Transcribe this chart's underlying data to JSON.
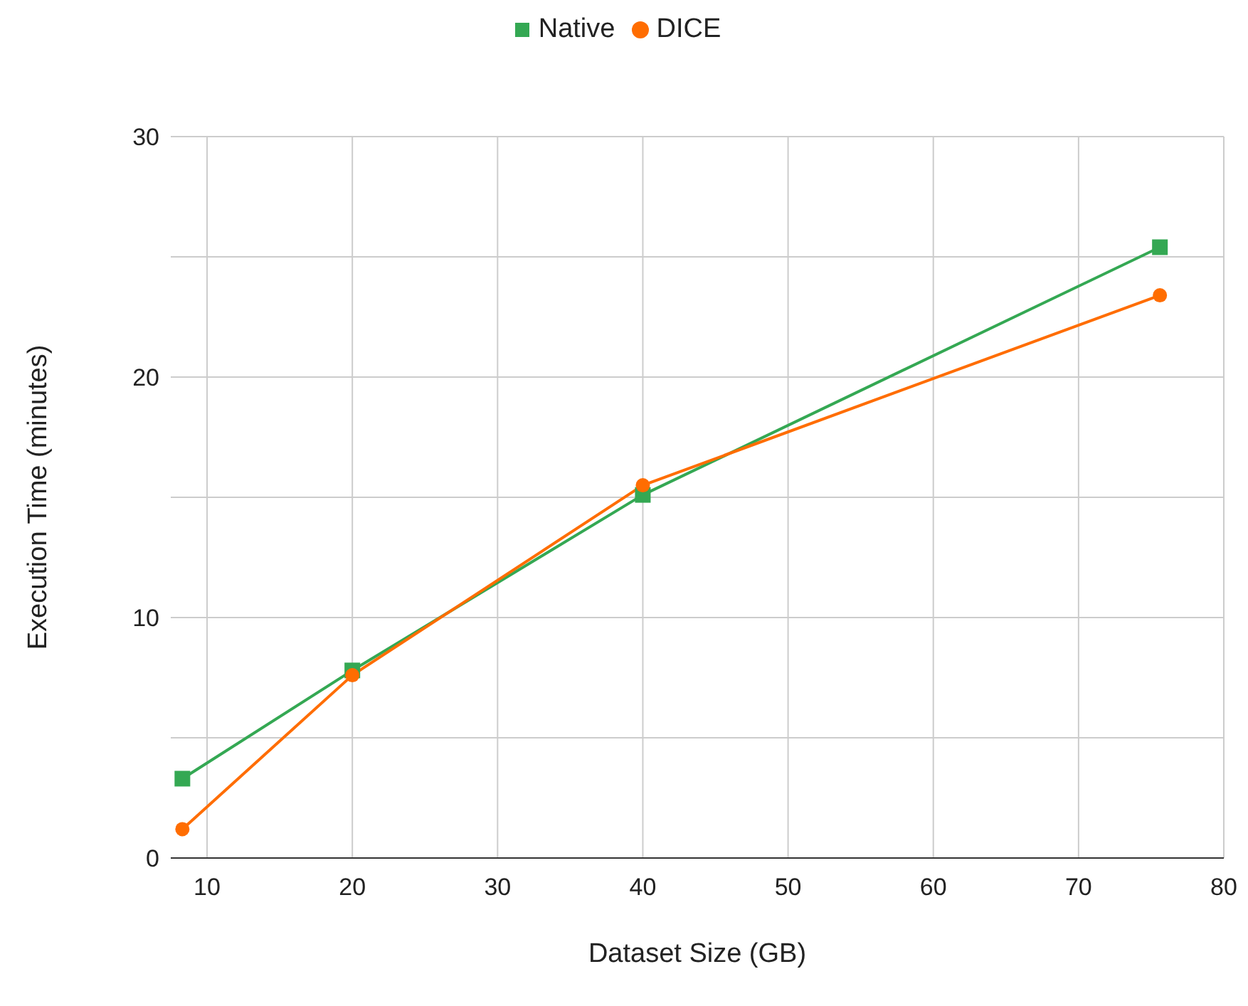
{
  "chart_data": {
    "type": "line",
    "xlabel": "Dataset Size (GB)",
    "ylabel": "Execution Time (minutes)",
    "xlim": [
      7.5,
      80
    ],
    "xticks": [
      10,
      20,
      30,
      40,
      50,
      60,
      70,
      80
    ],
    "ylim": [
      0,
      30
    ],
    "yticks": [
      0,
      {
        "value": 5,
        "label": null
      },
      10,
      {
        "value": 15,
        "label": null
      },
      20,
      {
        "value": 25,
        "label": null
      },
      30
    ],
    "grid": true,
    "legend": "top",
    "series": [
      {
        "name": "Native",
        "color": "#34a853",
        "marker": "square",
        "x": [
          8.3,
          20,
          40,
          75.6
        ],
        "values": [
          3.3,
          7.8,
          15.1,
          25.4
        ]
      },
      {
        "name": "DICE",
        "color": "#ff6d01",
        "marker": "circle",
        "x": [
          8.3,
          20,
          40,
          75.6
        ],
        "values": [
          1.2,
          7.6,
          15.5,
          23.4
        ]
      }
    ]
  }
}
